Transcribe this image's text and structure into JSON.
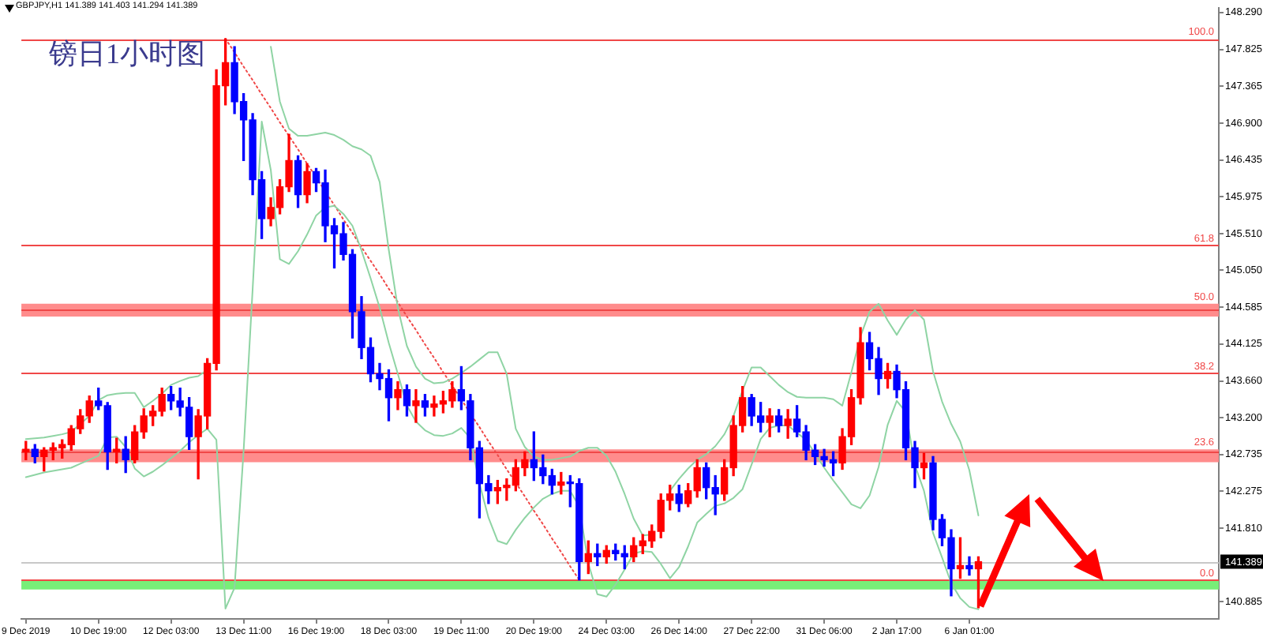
{
  "chart_data": {
    "type": "candlestick",
    "title": "镑日1小时图",
    "subtitle": "GBPJPY,H1 141.389 141.403 141.294 141.389",
    "categories": [
      "9 Dec 2019",
      null,
      null,
      null,
      null,
      null,
      null,
      null,
      "10 Dec 19:00",
      null,
      null,
      null,
      null,
      null,
      null,
      null,
      "12 Dec 03:00",
      null,
      null,
      null,
      null,
      null,
      null,
      null,
      "13 Dec 11:00",
      null,
      null,
      null,
      null,
      null,
      null,
      null,
      "16 Dec 19:00",
      null,
      null,
      null,
      null,
      null,
      null,
      null,
      "18 Dec 03:00",
      null,
      null,
      null,
      null,
      null,
      null,
      null,
      "19 Dec 11:00",
      null,
      null,
      null,
      null,
      null,
      null,
      null,
      "20 Dec 19:00",
      null,
      null,
      null,
      null,
      null,
      null,
      null,
      "24 Dec 03:00",
      null,
      null,
      null,
      null,
      null,
      null,
      null,
      "26 Dec 14:00",
      null,
      null,
      null,
      null,
      null,
      null,
      null,
      "27 Dec 22:00",
      null,
      null,
      null,
      null,
      null,
      null,
      null,
      "31 Dec 06:00",
      null,
      null,
      null,
      null,
      null,
      null,
      null,
      "2 Jan 17:00",
      null,
      null,
      null,
      null,
      null,
      null,
      null,
      "6 Jan 01:00",
      null,
      null,
      null,
      null,
      null,
      null,
      null,
      null,
      null,
      null,
      null,
      null,
      null,
      null,
      null,
      null,
      null,
      null,
      null,
      null,
      null,
      null,
      null,
      null,
      null,
      null,
      null
    ],
    "ylim": [
      140.67,
      148.35
    ],
    "yticks": [
      {
        "value": 140.885,
        "label": "140.885"
      },
      {
        "value": 141.81,
        "label": "141.810"
      },
      {
        "value": 142.275,
        "label": "142.275"
      },
      {
        "value": 142.735,
        "label": "142.735"
      },
      {
        "value": 143.2,
        "label": "143.200"
      },
      {
        "value": 143.66,
        "label": "143.660"
      },
      {
        "value": 144.125,
        "label": "144.125"
      },
      {
        "value": 144.585,
        "label": "144.585"
      },
      {
        "value": 145.05,
        "label": "145.050"
      },
      {
        "value": 145.51,
        "label": "145.510"
      },
      {
        "value": 145.975,
        "label": "145.975"
      },
      {
        "value": 146.435,
        "label": "146.435"
      },
      {
        "value": 146.9,
        "label": "146.900"
      },
      {
        "value": 147.365,
        "label": "147.365"
      },
      {
        "value": 147.825,
        "label": "147.825"
      },
      {
        "value": 148.29,
        "label": "148.290"
      }
    ],
    "y2lim": [
      -7.21,
      105.74
    ],
    "series": [
      {
        "ohlc": [
          [
            142.77,
            142.9,
            142.67,
            142.8
          ],
          [
            142.8,
            142.86,
            142.63,
            142.71
          ],
          [
            142.71,
            142.82,
            142.53,
            142.79
          ],
          [
            142.79,
            142.88,
            142.67,
            142.82
          ],
          [
            142.82,
            142.92,
            142.69,
            142.86
          ],
          [
            142.86,
            143.1,
            142.79,
            143.06
          ],
          [
            143.06,
            143.3,
            143.0,
            143.22
          ],
          [
            143.22,
            143.47,
            143.14,
            143.41
          ],
          [
            143.41,
            143.57,
            143.3,
            143.35
          ],
          [
            143.35,
            143.39,
            142.55,
            142.77
          ],
          [
            142.77,
            142.94,
            142.63,
            142.8
          ],
          [
            142.8,
            142.96,
            142.51,
            142.67
          ],
          [
            142.67,
            143.1,
            142.63,
            143.02
          ],
          [
            143.02,
            143.31,
            142.94,
            143.22
          ],
          [
            143.22,
            143.35,
            143.1,
            143.28
          ],
          [
            143.28,
            143.57,
            143.22,
            143.49
          ],
          [
            143.49,
            143.59,
            143.3,
            143.41
          ],
          [
            143.41,
            143.57,
            143.22,
            143.33
          ],
          [
            143.33,
            143.45,
            142.8,
            142.96
          ],
          [
            142.96,
            143.3,
            142.43,
            143.22
          ],
          [
            143.22,
            143.94,
            143.06,
            143.88
          ],
          [
            143.88,
            147.57,
            143.8,
            147.37
          ],
          [
            147.37,
            147.96,
            147.13,
            147.66
          ],
          [
            147.66,
            147.86,
            147.02,
            147.17
          ],
          [
            147.17,
            147.27,
            146.43,
            146.94
          ],
          [
            146.94,
            147.02,
            146.0,
            146.19
          ],
          [
            146.19,
            146.29,
            145.45,
            145.7
          ],
          [
            145.7,
            145.96,
            145.61,
            145.84
          ],
          [
            145.84,
            146.19,
            145.76,
            146.1
          ],
          [
            146.1,
            146.76,
            146.04,
            146.43
          ],
          [
            146.43,
            146.49,
            145.84,
            146.0
          ],
          [
            146.0,
            146.39,
            145.9,
            146.29
          ],
          [
            146.29,
            146.33,
            146.04,
            146.15
          ],
          [
            146.15,
            146.31,
            145.41,
            145.61
          ],
          [
            145.61,
            145.7,
            145.08,
            145.51
          ],
          [
            145.51,
            145.65,
            145.18,
            145.25
          ],
          [
            145.25,
            145.31,
            144.2,
            144.53
          ],
          [
            144.53,
            144.72,
            143.94,
            144.08
          ],
          [
            144.08,
            144.2,
            143.65,
            143.75
          ],
          [
            143.75,
            143.88,
            143.55,
            143.69
          ],
          [
            143.69,
            143.8,
            143.16,
            143.45
          ],
          [
            143.45,
            143.65,
            143.3,
            143.55
          ],
          [
            143.55,
            143.61,
            143.22,
            143.35
          ],
          [
            143.35,
            143.55,
            143.14,
            143.41
          ],
          [
            143.41,
            143.49,
            143.22,
            143.33
          ],
          [
            143.33,
            143.47,
            143.22,
            143.37
          ],
          [
            143.37,
            143.53,
            143.26,
            143.41
          ],
          [
            143.41,
            143.65,
            143.33,
            143.55
          ],
          [
            143.55,
            143.84,
            143.3,
            143.41
          ],
          [
            143.41,
            143.49,
            142.67,
            142.82
          ],
          [
            142.82,
            142.9,
            141.94,
            142.37
          ],
          [
            142.37,
            142.47,
            142.12,
            142.28
          ],
          [
            142.28,
            142.41,
            142.12,
            142.32
          ],
          [
            142.32,
            142.43,
            142.16,
            142.35
          ],
          [
            142.35,
            142.67,
            142.28,
            142.57
          ],
          [
            142.57,
            142.77,
            142.47,
            142.67
          ],
          [
            142.67,
            143.02,
            142.41,
            142.57
          ],
          [
            142.57,
            142.73,
            142.37,
            142.47
          ],
          [
            142.47,
            142.55,
            142.24,
            142.35
          ],
          [
            142.35,
            142.51,
            142.24,
            142.39
          ],
          [
            142.39,
            142.47,
            142.08,
            142.37
          ],
          [
            142.37,
            142.43,
            141.16,
            141.39
          ],
          [
            141.39,
            141.65,
            141.24,
            141.49
          ],
          [
            141.49,
            141.61,
            141.34,
            141.45
          ],
          [
            141.45,
            141.59,
            141.37,
            141.53
          ],
          [
            141.53,
            141.61,
            141.41,
            141.49
          ],
          [
            141.49,
            141.59,
            141.3,
            141.45
          ],
          [
            141.45,
            141.69,
            141.39,
            141.59
          ],
          [
            141.59,
            141.73,
            141.49,
            141.65
          ],
          [
            141.65,
            141.85,
            141.57,
            141.77
          ],
          [
            141.77,
            142.24,
            141.69,
            142.16
          ],
          [
            142.16,
            142.35,
            142.04,
            142.24
          ],
          [
            142.24,
            142.35,
            142.02,
            142.12
          ],
          [
            142.12,
            142.37,
            142.08,
            142.28
          ],
          [
            142.28,
            142.67,
            142.2,
            142.57
          ],
          [
            142.57,
            142.63,
            142.18,
            142.32
          ],
          [
            142.32,
            142.47,
            141.98,
            142.24
          ],
          [
            142.24,
            142.67,
            142.16,
            142.57
          ],
          [
            142.57,
            143.22,
            142.47,
            143.1
          ],
          [
            143.1,
            143.59,
            143.02,
            143.45
          ],
          [
            143.45,
            143.49,
            143.1,
            143.22
          ],
          [
            143.22,
            143.39,
            143.02,
            143.14
          ],
          [
            143.14,
            143.31,
            142.96,
            143.22
          ],
          [
            143.22,
            143.3,
            143.02,
            143.1
          ],
          [
            143.1,
            143.3,
            142.94,
            143.18
          ],
          [
            143.18,
            143.35,
            142.96,
            143.02
          ],
          [
            143.02,
            143.1,
            142.67,
            142.79
          ],
          [
            142.79,
            142.86,
            142.61,
            142.71
          ],
          [
            142.71,
            142.8,
            142.59,
            142.67
          ],
          [
            142.67,
            142.77,
            142.47,
            142.63
          ],
          [
            142.63,
            143.06,
            142.55,
            142.96
          ],
          [
            142.96,
            143.55,
            142.86,
            143.45
          ],
          [
            143.45,
            144.33,
            143.37,
            144.14
          ],
          [
            144.14,
            144.27,
            143.8,
            143.94
          ],
          [
            143.94,
            144.08,
            143.49,
            143.69
          ],
          [
            143.69,
            143.88,
            143.57,
            143.78
          ],
          [
            143.78,
            143.86,
            143.45,
            143.55
          ],
          [
            143.55,
            143.65,
            142.67,
            142.82
          ],
          [
            142.82,
            142.9,
            142.32,
            142.57
          ],
          [
            142.57,
            142.75,
            142.43,
            142.63
          ],
          [
            142.63,
            142.71,
            141.79,
            141.92
          ],
          [
            141.92,
            141.98,
            141.59,
            141.69
          ],
          [
            141.69,
            141.79,
            140.96,
            141.3
          ],
          [
            141.3,
            141.69,
            141.18,
            141.34
          ],
          [
            141.34,
            141.45,
            141.22,
            141.3
          ],
          [
            141.3,
            141.45,
            140.81,
            141.389
          ],
          null,
          null,
          null,
          null,
          null,
          null,
          null,
          null,
          null,
          null,
          null,
          null,
          null,
          null,
          null,
          null,
          null,
          null,
          null,
          null,
          null,
          null,
          null,
          null,
          null,
          null
        ],
        "colors": [
          "#ff0000",
          "#0000ff",
          "#ff0000",
          "#ff0000",
          "#ff0000",
          "#ff0000",
          "#ff0000",
          "#ff0000",
          "#0000ff",
          "#0000ff",
          "#ff0000",
          "#0000ff",
          "#ff0000",
          "#ff0000",
          "#ff0000",
          "#ff0000",
          "#0000ff",
          "#0000ff",
          "#0000ff",
          "#ff0000",
          "#ff0000",
          "#ff0000",
          "#ff0000",
          "#0000ff",
          "#0000ff",
          "#0000ff",
          "#0000ff",
          "#ff0000",
          "#ff0000",
          "#ff0000",
          "#0000ff",
          "#ff0000",
          "#0000ff",
          "#0000ff",
          "#0000ff",
          "#0000ff",
          "#0000ff",
          "#0000ff",
          "#0000ff",
          "#0000ff",
          "#0000ff",
          "#ff0000",
          "#0000ff",
          "#ff0000",
          "#0000ff",
          "#ff0000",
          "#ff0000",
          "#ff0000",
          "#0000ff",
          "#0000ff",
          "#0000ff",
          "#0000ff",
          "#ff0000",
          "#ff0000",
          "#ff0000",
          "#ff0000",
          "#0000ff",
          "#0000ff",
          "#0000ff",
          "#ff0000",
          "#0000ff",
          "#0000ff",
          "#ff0000",
          "#0000ff",
          "#ff0000",
          "#0000ff",
          "#0000ff",
          "#ff0000",
          "#ff0000",
          "#ff0000",
          "#ff0000",
          "#ff0000",
          "#0000ff",
          "#ff0000",
          "#ff0000",
          "#0000ff",
          "#0000ff",
          "#ff0000",
          "#ff0000",
          "#ff0000",
          "#0000ff",
          "#0000ff",
          "#ff0000",
          "#0000ff",
          "#ff0000",
          "#0000ff",
          "#0000ff",
          "#0000ff",
          "#0000ff",
          "#0000ff",
          "#ff0000",
          "#ff0000",
          "#ff0000",
          "#0000ff",
          "#0000ff",
          "#ff0000",
          "#0000ff",
          "#0000ff",
          "#0000ff",
          "#ff0000",
          "#0000ff",
          "#0000ff",
          "#0000ff",
          "#ff0000",
          "#0000ff",
          "#ff0000",
          null,
          null,
          null,
          null,
          null,
          null,
          null,
          null,
          null,
          null,
          null,
          null,
          null,
          null,
          null,
          null,
          null,
          null,
          null,
          null,
          null,
          null,
          null,
          null,
          null,
          null
        ]
      },
      {
        "type": "line",
        "color": "#8fd4a4",
        "values": [
          142.93,
          142.94,
          142.95,
          142.97,
          142.99,
          143.02,
          143.12,
          143.22,
          143.42,
          143.48,
          143.5,
          143.51,
          143.51,
          143.33,
          143.41,
          143.5,
          143.61,
          143.66,
          143.7,
          143.72,
          143.8,
          null,
          null,
          null,
          null,
          null,
          null,
          147.86,
          147.17,
          146.83,
          146.74,
          146.74,
          146.76,
          146.78,
          146.75,
          146.69,
          146.61,
          146.57,
          146.49,
          146.16,
          145.31,
          144.58,
          144.1,
          143.84,
          143.69,
          143.63,
          143.64,
          143.69,
          143.76,
          143.84,
          143.93,
          144.02,
          144.02,
          143.75,
          143.06,
          142.83,
          142.71,
          142.67,
          142.67,
          142.69,
          142.71,
          142.78,
          142.82,
          142.82,
          142.72,
          142.52,
          142.24,
          141.93,
          141.72,
          141.73,
          null,
          142.28,
          142.43,
          142.56,
          142.67,
          142.74,
          142.84,
          142.99,
          143.22,
          143.54,
          143.83,
          143.83,
          143.72,
          143.61,
          143.52,
          143.46,
          143.45,
          143.45,
          143.45,
          143.43,
          143.35,
          143.77,
          144.22,
          144.53,
          144.63,
          144.42,
          144.24,
          144.43,
          144.55,
          144.43,
          143.78,
          143.4,
          143.12,
          142.9,
          142.54,
          141.97,
          null,
          null,
          null,
          null,
          null,
          null,
          null,
          null,
          null,
          null,
          null,
          null,
          null,
          null,
          null,
          null,
          null,
          null,
          null,
          null,
          null,
          null,
          null,
          null,
          null,
          null
        ]
      },
      {
        "type": "line",
        "color": "#8fd4a4",
        "values": [
          142.45,
          142.48,
          142.51,
          142.53,
          142.55,
          142.57,
          142.62,
          142.67,
          142.72,
          142.95,
          142.96,
          142.83,
          142.56,
          142.46,
          142.52,
          142.6,
          142.69,
          142.78,
          142.89,
          142.98,
          143.06,
          142.92,
          140.8,
          141.06,
          142.78,
          144.82,
          146.92,
          146.31,
          145.19,
          145.13,
          145.29,
          145.5,
          145.74,
          145.84,
          145.86,
          145.76,
          145.61,
          145.3,
          144.95,
          144.58,
          144.14,
          143.75,
          143.35,
          143.15,
          143.04,
          142.98,
          142.97,
          143.0,
          143.07,
          142.94,
          142.37,
          141.94,
          141.65,
          141.61,
          141.79,
          141.94,
          142.07,
          142.18,
          142.24,
          142.28,
          142.28,
          142.08,
          141.37,
          140.98,
          140.95,
          141.1,
          141.29,
          141.49,
          141.52,
          141.51,
          141.36,
          141.18,
          141.32,
          141.58,
          141.88,
          141.99,
          142.09,
          142.12,
          142.19,
          142.3,
          142.61,
          142.93,
          143.07,
          143.1,
          143.1,
          143.01,
          142.92,
          142.75,
          142.57,
          142.41,
          142.26,
          142.11,
          142.06,
          142.22,
          142.58,
          143.11,
          143.41,
          143.27,
          142.6,
          142.28,
          141.75,
          141.44,
          141.12,
          140.93,
          140.82,
          140.79,
          null,
          null,
          null,
          null,
          null,
          null,
          null,
          null,
          null,
          null,
          null,
          null,
          null,
          null,
          null,
          null,
          null,
          null,
          null,
          null,
          null,
          null,
          null,
          null,
          null,
          null
        ]
      },
      {
        "type": "line",
        "color": "#f04848",
        "line_style": "dotted",
        "values": [
          null,
          null,
          null,
          null,
          null,
          null,
          null,
          null,
          null,
          null,
          null,
          null,
          null,
          null,
          null,
          null,
          null,
          null,
          null,
          null,
          null,
          null,
          147.96,
          147.79,
          147.61,
          147.44,
          147.26,
          147.09,
          146.91,
          146.74,
          146.57,
          146.39,
          146.22,
          146.04,
          145.87,
          145.69,
          145.52,
          145.34,
          145.17,
          145.0,
          144.82,
          144.65,
          144.47,
          144.3,
          144.12,
          143.95,
          143.77,
          143.6,
          143.43,
          143.25,
          143.08,
          142.9,
          142.73,
          142.55,
          142.38,
          142.21,
          142.03,
          141.86,
          141.68,
          141.51,
          141.33,
          141.16,
          null,
          null,
          null,
          null,
          null,
          null,
          null,
          null,
          null,
          null,
          null,
          null,
          null,
          null,
          null,
          null,
          null,
          null,
          null,
          null,
          null,
          null,
          null,
          null,
          null,
          null,
          null,
          null,
          null,
          null,
          null,
          null,
          null,
          null,
          null,
          null,
          null,
          null,
          null,
          null,
          null,
          null,
          null,
          null,
          null,
          null,
          null,
          null,
          null,
          null,
          null,
          null,
          null,
          null,
          null,
          null,
          null,
          null,
          null,
          null,
          null,
          null,
          null,
          null,
          null,
          null,
          null,
          null,
          null,
          null
        ]
      }
    ],
    "bands": [
      {
        "axis": "y",
        "from": 144.47,
        "to": 144.63,
        "color": "#ff8c8c"
      },
      {
        "axis": "y",
        "from": 142.64,
        "to": 142.8,
        "color": "#ff8c8c"
      },
      {
        "axis": "y",
        "from": 141.04,
        "to": 141.15,
        "color": "#78ee78"
      }
    ],
    "ref_lines": [
      {
        "axis": "y2",
        "value": 100.0,
        "label": "100.0",
        "color": "#f04848"
      },
      {
        "axis": "y2",
        "value": 61.8,
        "label": "61.8",
        "color": "#f04848"
      },
      {
        "axis": "y2",
        "value": 50.0,
        "label": "50.0",
        "color": "#f04848"
      },
      {
        "axis": "y2",
        "value": 38.2,
        "label": "38.2",
        "color": "#f04848"
      },
      {
        "axis": "y2",
        "value": 23.6,
        "label": "23.6",
        "color": "#f04848"
      },
      {
        "axis": "y2",
        "value": 0.0,
        "label": "0.0",
        "color": "#f04848"
      },
      {
        "axis": "y",
        "value": 141.389,
        "label": "141.389",
        "color": "#c8c8c8"
      }
    ]
  }
}
